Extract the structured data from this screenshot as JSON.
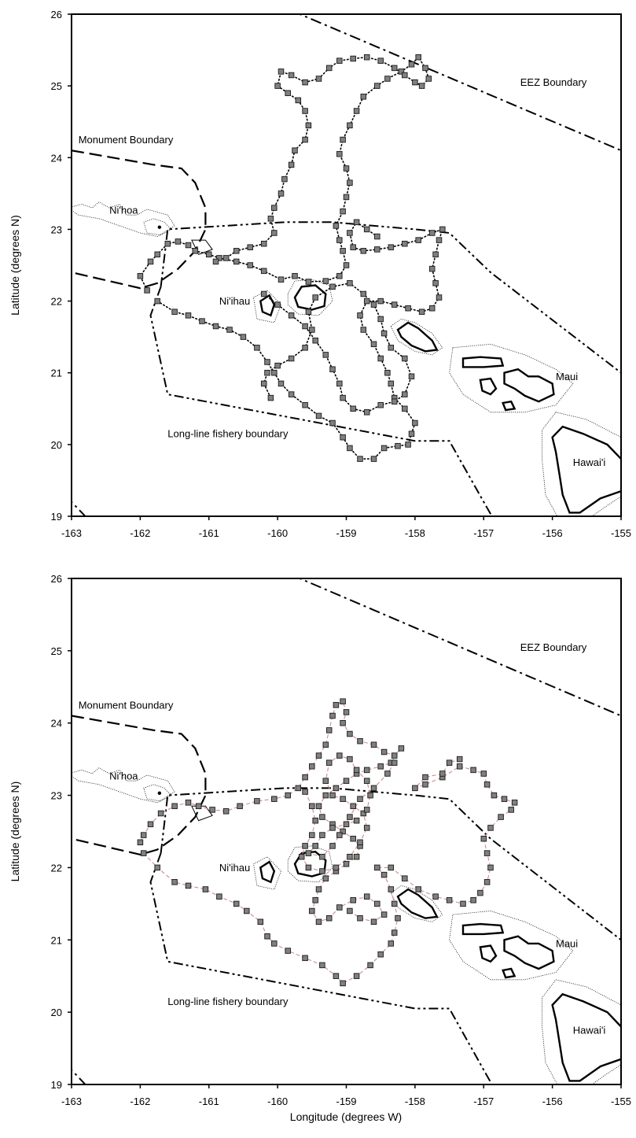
{
  "chart_data": [
    {
      "type": "scatter",
      "xlabel": "",
      "ylabel": "Latitude (degrees N)",
      "xlim": [
        -163,
        -155
      ],
      "ylim": [
        19,
        26
      ],
      "x_ticks": [
        "-163",
        "-162",
        "-161",
        "-160",
        "-159",
        "-158",
        "-157",
        "-156",
        "-155"
      ],
      "y_ticks": [
        "19",
        "20",
        "21",
        "22",
        "23",
        "24",
        "25",
        "26"
      ],
      "labels": {
        "eez": "EEZ Boundary",
        "monument": "Monument Boundary",
        "longline": "Long-line fishery boundary",
        "nihoa": "Ni'hoa",
        "niihau": "Ni'ihau",
        "maui": "Maui",
        "hawaii": "Hawai'i"
      },
      "track_style": "dotted",
      "track": [
        [
          -161.9,
          22.15
        ],
        [
          -162.0,
          22.35
        ],
        [
          -161.85,
          22.55
        ],
        [
          -161.75,
          22.65
        ],
        [
          -161.6,
          22.8
        ],
        [
          -161.45,
          22.83
        ],
        [
          -161.3,
          22.78
        ],
        [
          -161.2,
          22.7
        ],
        [
          -161.0,
          22.65
        ],
        [
          -160.85,
          22.6
        ],
        [
          -160.6,
          22.55
        ],
        [
          -160.4,
          22.5
        ],
        [
          -160.2,
          22.42
        ],
        [
          -159.95,
          22.3
        ],
        [
          -159.75,
          22.35
        ],
        [
          -159.55,
          22.27
        ],
        [
          -159.3,
          22.28
        ],
        [
          -159.1,
          22.35
        ],
        [
          -159.0,
          22.5
        ],
        [
          -159.05,
          22.7
        ],
        [
          -159.1,
          22.85
        ],
        [
          -159.15,
          23.05
        ],
        [
          -159.05,
          23.25
        ],
        [
          -159.0,
          23.45
        ],
        [
          -158.95,
          23.65
        ],
        [
          -159.0,
          23.85
        ],
        [
          -159.1,
          24.05
        ],
        [
          -159.05,
          24.25
        ],
        [
          -158.95,
          24.45
        ],
        [
          -158.85,
          24.65
        ],
        [
          -158.75,
          24.85
        ],
        [
          -158.55,
          25.0
        ],
        [
          -158.4,
          25.1
        ],
        [
          -158.2,
          25.2
        ],
        [
          -158.05,
          25.3
        ],
        [
          -157.95,
          25.4
        ],
        [
          -157.85,
          25.25
        ],
        [
          -157.8,
          25.1
        ],
        [
          -157.9,
          25.0
        ],
        [
          -158.0,
          25.05
        ],
        [
          -158.15,
          25.15
        ],
        [
          -158.3,
          25.25
        ],
        [
          -158.5,
          25.35
        ],
        [
          -158.7,
          25.4
        ],
        [
          -158.9,
          25.38
        ],
        [
          -159.1,
          25.35
        ],
        [
          -159.25,
          25.25
        ],
        [
          -159.4,
          25.1
        ],
        [
          -159.6,
          25.05
        ],
        [
          -159.8,
          25.15
        ],
        [
          -159.95,
          25.2
        ],
        [
          -160.0,
          25.0
        ],
        [
          -159.85,
          24.9
        ],
        [
          -159.7,
          24.8
        ],
        [
          -159.6,
          24.65
        ],
        [
          -159.55,
          24.45
        ],
        [
          -159.6,
          24.25
        ],
        [
          -159.75,
          24.1
        ],
        [
          -159.8,
          23.9
        ],
        [
          -159.9,
          23.7
        ],
        [
          -159.95,
          23.5
        ],
        [
          -160.05,
          23.3
        ],
        [
          -160.1,
          23.15
        ],
        [
          -160.05,
          22.95
        ],
        [
          -160.2,
          22.8
        ],
        [
          -160.4,
          22.75
        ],
        [
          -160.6,
          22.7
        ],
        [
          -160.75,
          22.6
        ],
        [
          -160.9,
          22.55
        ]
      ],
      "track2": [
        [
          -161.75,
          22.0
        ],
        [
          -161.5,
          21.85
        ],
        [
          -161.3,
          21.8
        ],
        [
          -161.1,
          21.72
        ],
        [
          -160.9,
          21.65
        ],
        [
          -160.7,
          21.6
        ],
        [
          -160.5,
          21.5
        ],
        [
          -160.3,
          21.35
        ],
        [
          -160.15,
          21.15
        ],
        [
          -160.05,
          21.0
        ],
        [
          -159.95,
          20.85
        ],
        [
          -159.8,
          20.7
        ],
        [
          -159.6,
          20.55
        ],
        [
          -159.4,
          20.4
        ],
        [
          -159.2,
          20.3
        ],
        [
          -159.05,
          20.1
        ],
        [
          -158.95,
          19.95
        ],
        [
          -158.8,
          19.8
        ],
        [
          -158.6,
          19.8
        ],
        [
          -158.45,
          19.95
        ],
        [
          -158.25,
          19.98
        ],
        [
          -158.1,
          20.0
        ],
        [
          -158.05,
          20.15
        ],
        [
          -158.0,
          20.3
        ],
        [
          -158.15,
          20.5
        ],
        [
          -158.3,
          20.65
        ],
        [
          -158.35,
          20.85
        ],
        [
          -158.4,
          21.0
        ],
        [
          -158.5,
          21.2
        ],
        [
          -158.6,
          21.4
        ],
        [
          -158.75,
          21.6
        ],
        [
          -158.8,
          21.8
        ],
        [
          -158.7,
          22.0
        ],
        [
          -158.5,
          22.0
        ],
        [
          -158.3,
          21.95
        ],
        [
          -158.1,
          21.9
        ],
        [
          -157.9,
          21.85
        ],
        [
          -157.75,
          21.9
        ],
        [
          -157.65,
          22.05
        ],
        [
          -157.7,
          22.25
        ],
        [
          -157.75,
          22.45
        ],
        [
          -157.7,
          22.65
        ],
        [
          -157.65,
          22.85
        ],
        [
          -157.6,
          23.0
        ],
        [
          -157.75,
          22.95
        ],
        [
          -157.95,
          22.85
        ],
        [
          -158.15,
          22.8
        ],
        [
          -158.35,
          22.75
        ],
        [
          -158.55,
          22.72
        ],
        [
          -158.75,
          22.7
        ],
        [
          -158.9,
          22.75
        ],
        [
          -158.95,
          22.95
        ],
        [
          -158.85,
          23.1
        ],
        [
          -158.7,
          23.0
        ],
        [
          -158.55,
          22.9
        ]
      ],
      "track3": [
        [
          -160.2,
          22.1
        ],
        [
          -160.0,
          21.95
        ],
        [
          -159.8,
          21.8
        ],
        [
          -159.6,
          21.65
        ],
        [
          -159.45,
          21.45
        ],
        [
          -159.3,
          21.25
        ],
        [
          -159.2,
          21.05
        ],
        [
          -159.1,
          20.85
        ],
        [
          -159.05,
          20.65
        ],
        [
          -158.9,
          20.5
        ],
        [
          -158.7,
          20.45
        ],
        [
          -158.5,
          20.55
        ],
        [
          -158.3,
          20.6
        ],
        [
          -158.15,
          20.7
        ],
        [
          -158.05,
          20.95
        ],
        [
          -158.15,
          21.2
        ],
        [
          -158.35,
          21.35
        ],
        [
          -158.45,
          21.55
        ],
        [
          -158.5,
          21.75
        ],
        [
          -158.6,
          21.95
        ],
        [
          -158.75,
          22.1
        ],
        [
          -158.95,
          22.25
        ],
        [
          -159.2,
          22.2
        ],
        [
          -159.45,
          22.05
        ],
        [
          -159.55,
          21.85
        ],
        [
          -159.5,
          21.6
        ],
        [
          -159.6,
          21.35
        ],
        [
          -159.8,
          21.2
        ],
        [
          -160.0,
          21.1
        ],
        [
          -160.15,
          21.0
        ],
        [
          -160.2,
          20.85
        ],
        [
          -160.1,
          20.65
        ]
      ]
    },
    {
      "type": "scatter",
      "xlabel": "Longitude (degrees W)",
      "ylabel": "Latitude (degrees N)",
      "xlim": [
        -163,
        -155
      ],
      "ylim": [
        19,
        26
      ],
      "x_ticks": [
        "-163",
        "-162",
        "-161",
        "-160",
        "-159",
        "-158",
        "-157",
        "-156",
        "-155"
      ],
      "y_ticks": [
        "19",
        "20",
        "21",
        "22",
        "23",
        "24",
        "25",
        "26"
      ],
      "labels": {
        "eez": "EEZ Boundary",
        "monument": "Monument Boundary",
        "longline": "Long-line fishery boundary",
        "nihoa": "Ni'hoa",
        "niihau": "Ni'ihau",
        "maui": "Maui",
        "hawaii": "Hawai'i"
      },
      "track_style": "dashed-red",
      "track": [
        [
          -162.0,
          22.35
        ],
        [
          -161.95,
          22.45
        ],
        [
          -161.85,
          22.6
        ],
        [
          -161.7,
          22.75
        ],
        [
          -161.5,
          22.85
        ],
        [
          -161.3,
          22.9
        ],
        [
          -161.15,
          22.85
        ],
        [
          -160.95,
          22.8
        ],
        [
          -160.75,
          22.78
        ],
        [
          -160.55,
          22.85
        ],
        [
          -160.3,
          22.92
        ],
        [
          -160.05,
          22.95
        ],
        [
          -159.85,
          23.0
        ],
        [
          -159.7,
          23.1
        ],
        [
          -159.6,
          23.25
        ],
        [
          -159.5,
          23.4
        ],
        [
          -159.4,
          23.55
        ],
        [
          -159.3,
          23.7
        ],
        [
          -159.25,
          23.9
        ],
        [
          -159.2,
          24.1
        ],
        [
          -159.15,
          24.25
        ],
        [
          -159.05,
          24.3
        ],
        [
          -159.0,
          24.15
        ],
        [
          -159.05,
          24.0
        ],
        [
          -158.95,
          23.85
        ],
        [
          -158.8,
          23.75
        ],
        [
          -158.6,
          23.7
        ],
        [
          -158.45,
          23.6
        ],
        [
          -158.3,
          23.55
        ],
        [
          -158.2,
          23.65
        ],
        [
          -158.35,
          23.45
        ],
        [
          -158.5,
          23.4
        ],
        [
          -158.7,
          23.35
        ],
        [
          -158.85,
          23.3
        ],
        [
          -159.0,
          23.2
        ],
        [
          -159.15,
          23.1
        ],
        [
          -159.3,
          23.0
        ],
        [
          -159.4,
          22.85
        ],
        [
          -159.35,
          22.7
        ],
        [
          -159.2,
          22.6
        ],
        [
          -159.05,
          22.5
        ],
        [
          -158.9,
          22.4
        ],
        [
          -158.8,
          22.3
        ],
        [
          -158.85,
          22.15
        ],
        [
          -159.0,
          22.05
        ],
        [
          -159.15,
          21.95
        ],
        [
          -159.3,
          21.85
        ],
        [
          -159.4,
          21.7
        ],
        [
          -159.45,
          21.55
        ],
        [
          -159.5,
          21.4
        ],
        [
          -159.4,
          21.25
        ],
        [
          -159.25,
          21.3
        ],
        [
          -159.1,
          21.45
        ],
        [
          -158.9,
          21.55
        ],
        [
          -158.7,
          21.6
        ],
        [
          -158.55,
          21.5
        ],
        [
          -158.45,
          21.35
        ],
        [
          -158.6,
          21.25
        ],
        [
          -158.8,
          21.3
        ],
        [
          -158.95,
          21.4
        ]
      ],
      "track2": [
        [
          -161.95,
          22.2
        ],
        [
          -161.75,
          22.0
        ],
        [
          -161.5,
          21.8
        ],
        [
          -161.3,
          21.75
        ],
        [
          -161.05,
          21.7
        ],
        [
          -160.85,
          21.6
        ],
        [
          -160.6,
          21.5
        ],
        [
          -160.45,
          21.4
        ],
        [
          -160.25,
          21.25
        ],
        [
          -160.15,
          21.05
        ],
        [
          -160.05,
          20.95
        ],
        [
          -159.85,
          20.85
        ],
        [
          -159.6,
          20.75
        ],
        [
          -159.35,
          20.65
        ],
        [
          -159.15,
          20.5
        ],
        [
          -159.05,
          20.4
        ],
        [
          -158.85,
          20.5
        ],
        [
          -158.65,
          20.65
        ],
        [
          -158.5,
          20.8
        ],
        [
          -158.35,
          20.95
        ],
        [
          -158.3,
          21.1
        ],
        [
          -158.25,
          21.3
        ],
        [
          -158.3,
          21.5
        ],
        [
          -158.35,
          21.7
        ],
        [
          -158.45,
          21.9
        ],
        [
          -158.55,
          22.0
        ],
        [
          -158.35,
          22.0
        ],
        [
          -158.15,
          21.85
        ],
        [
          -157.95,
          21.7
        ],
        [
          -157.7,
          21.6
        ],
        [
          -157.5,
          21.55
        ],
        [
          -157.3,
          21.5
        ],
        [
          -157.15,
          21.55
        ],
        [
          -157.05,
          21.65
        ],
        [
          -156.95,
          21.8
        ],
        [
          -156.9,
          22.0
        ],
        [
          -156.95,
          22.2
        ],
        [
          -157.0,
          22.4
        ],
        [
          -156.9,
          22.55
        ],
        [
          -156.75,
          22.7
        ],
        [
          -156.6,
          22.8
        ],
        [
          -156.55,
          22.9
        ],
        [
          -156.7,
          22.95
        ],
        [
          -156.85,
          23.0
        ],
        [
          -156.95,
          23.15
        ],
        [
          -157.0,
          23.3
        ],
        [
          -157.15,
          23.35
        ],
        [
          -157.35,
          23.4
        ],
        [
          -157.6,
          23.25
        ],
        [
          -157.85,
          23.15
        ],
        [
          -158.0,
          23.1
        ],
        [
          -157.85,
          23.25
        ],
        [
          -157.6,
          23.3
        ],
        [
          -157.5,
          23.45
        ],
        [
          -157.35,
          23.5
        ]
      ],
      "track3": [
        [
          -159.6,
          23.05
        ],
        [
          -159.5,
          22.85
        ],
        [
          -159.45,
          22.65
        ],
        [
          -159.5,
          22.45
        ],
        [
          -159.6,
          22.3
        ],
        [
          -159.65,
          22.15
        ],
        [
          -159.55,
          22.0
        ],
        [
          -159.35,
          21.95
        ],
        [
          -159.15,
          22.0
        ],
        [
          -158.95,
          22.15
        ],
        [
          -158.8,
          22.35
        ],
        [
          -158.7,
          22.55
        ],
        [
          -158.75,
          22.75
        ],
        [
          -158.9,
          22.85
        ],
        [
          -159.05,
          22.95
        ],
        [
          -159.2,
          23.0
        ],
        [
          -159.3,
          23.2
        ],
        [
          -159.25,
          23.45
        ],
        [
          -159.1,
          23.55
        ],
        [
          -158.95,
          23.5
        ],
        [
          -158.85,
          23.35
        ],
        [
          -158.7,
          23.2
        ],
        [
          -158.65,
          23.0
        ],
        [
          -158.7,
          22.8
        ],
        [
          -158.85,
          22.65
        ],
        [
          -159.0,
          22.6
        ],
        [
          -159.2,
          22.55
        ],
        [
          -159.35,
          22.45
        ],
        [
          -159.45,
          22.3
        ],
        [
          -159.55,
          22.2
        ],
        [
          -159.35,
          22.15
        ],
        [
          -159.2,
          22.3
        ],
        [
          -159.1,
          22.45
        ],
        [
          -158.95,
          22.7
        ],
        [
          -158.8,
          22.95
        ],
        [
          -158.6,
          23.1
        ],
        [
          -158.4,
          23.3
        ],
        [
          -158.3,
          23.45
        ]
      ]
    }
  ]
}
